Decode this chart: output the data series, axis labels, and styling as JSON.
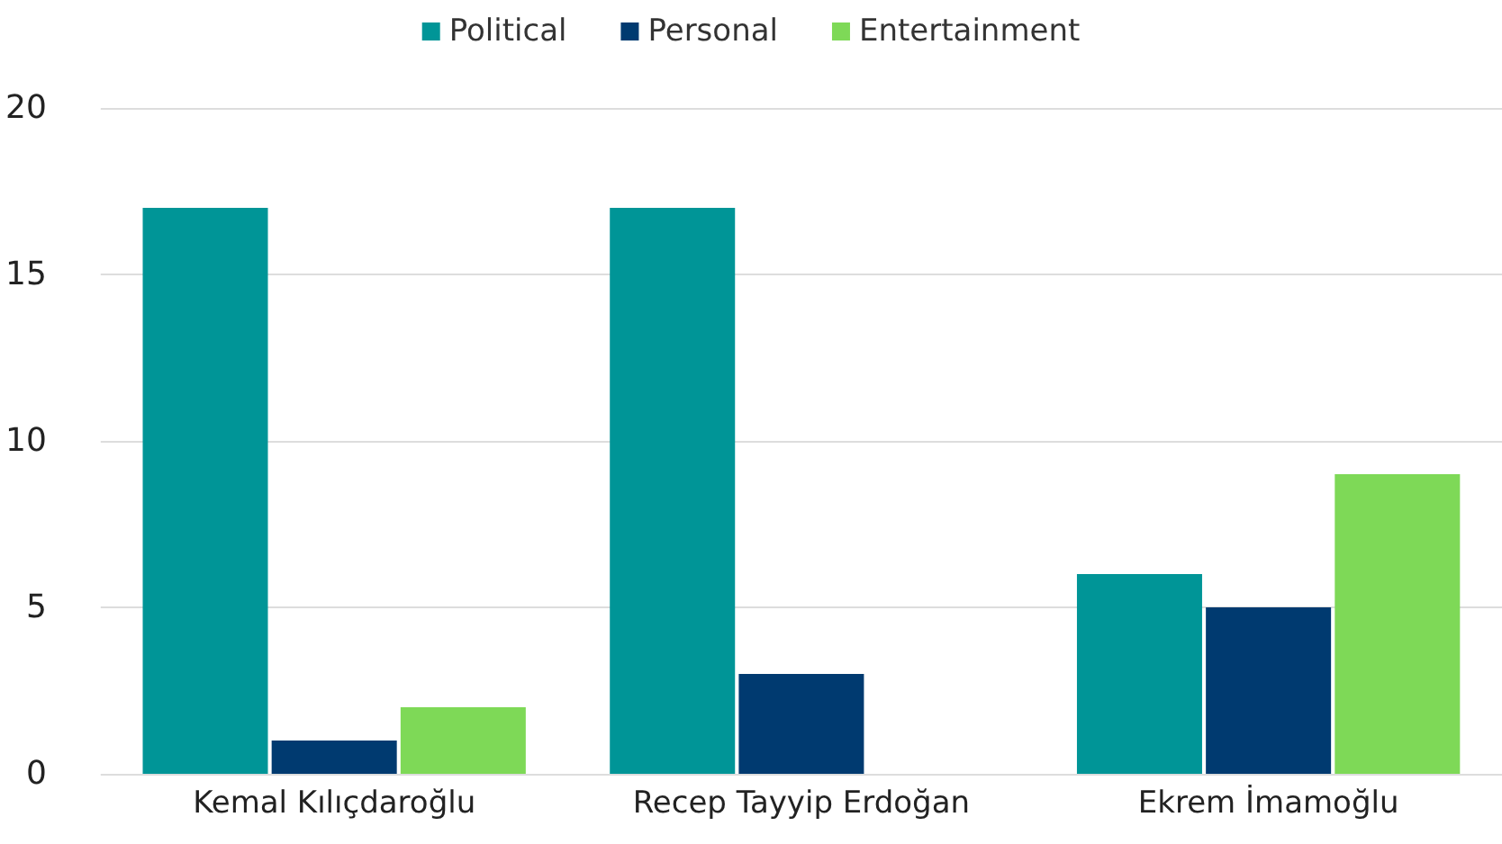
{
  "chart_data": {
    "type": "bar",
    "categories": [
      "Kemal Kılıçdaroğlu",
      "Recep Tayyip Erdoğan",
      "Ekrem İmamoğlu"
    ],
    "series": [
      {
        "name": "Political",
        "color": "#009597",
        "values": [
          17,
          17,
          6
        ]
      },
      {
        "name": "Personal",
        "color": "#003a70",
        "values": [
          1,
          3,
          5
        ]
      },
      {
        "name": "Entertainment",
        "color": "#7ed957",
        "values": [
          2,
          0,
          9
        ]
      }
    ],
    "ylim": [
      0,
      20
    ],
    "yticks": [
      0,
      5,
      10,
      15,
      20
    ],
    "grid": "y",
    "legend": "top",
    "marker": "square"
  }
}
